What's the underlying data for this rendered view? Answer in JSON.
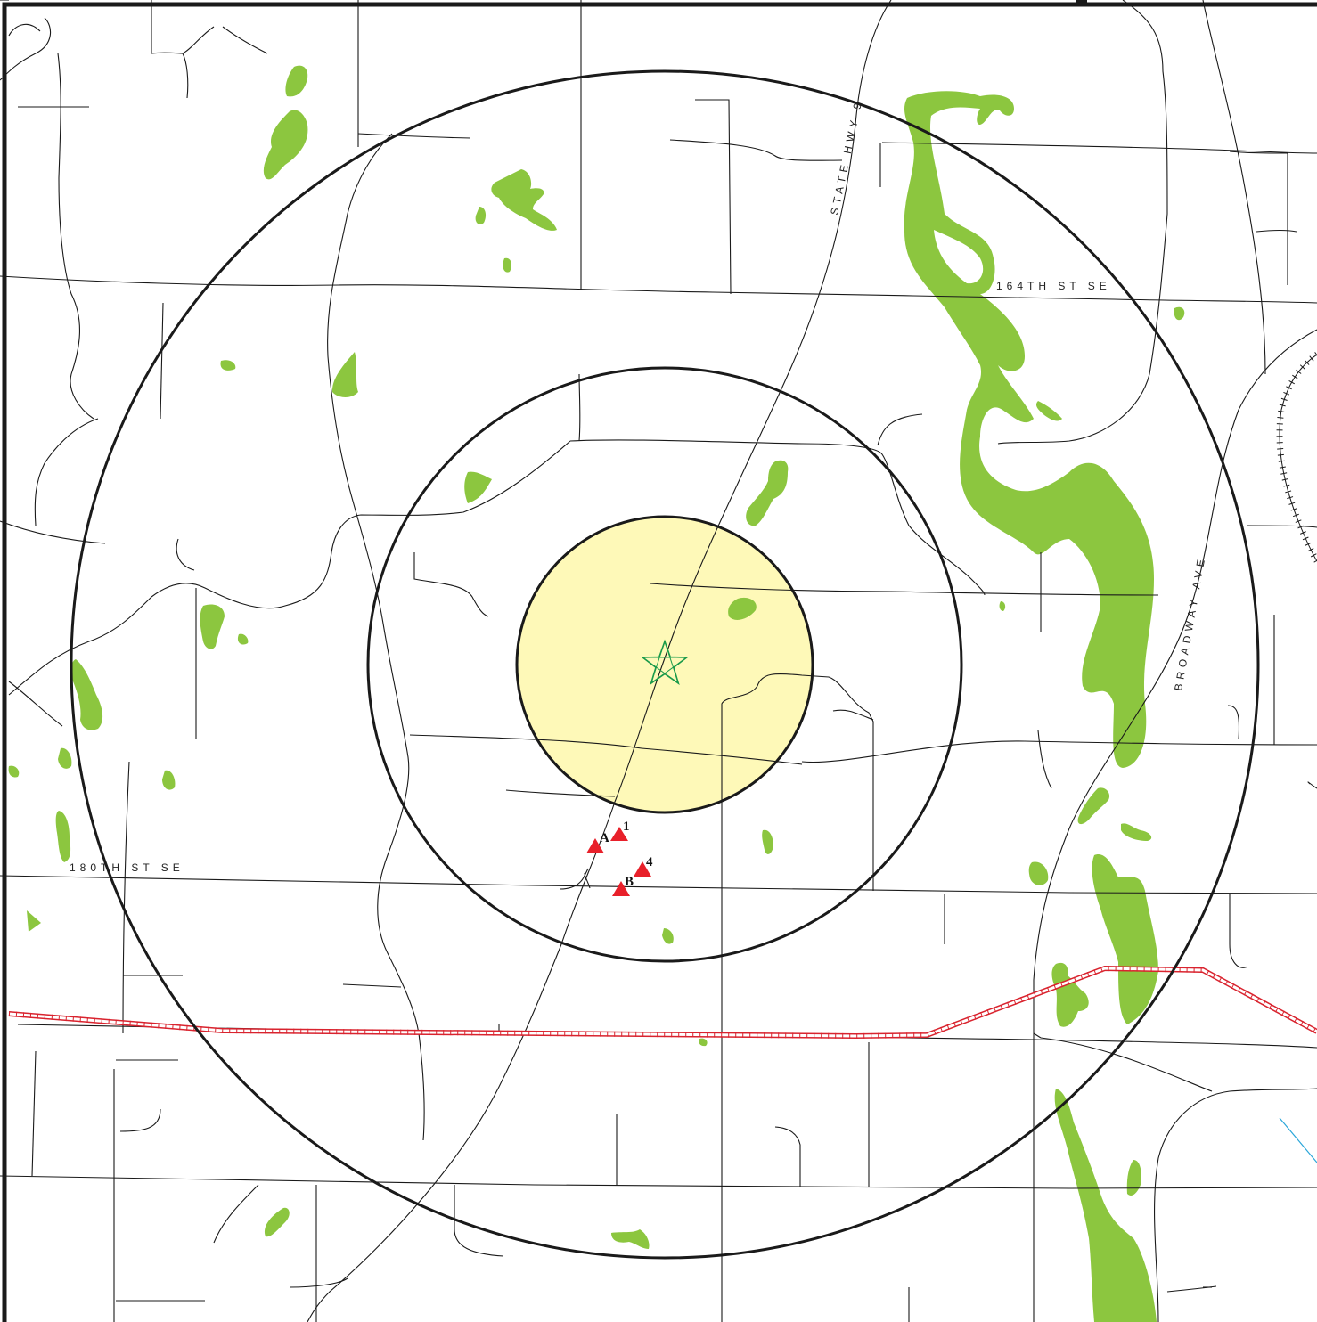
{
  "streets": {
    "hwy9": "STATE HWY 9",
    "st164": "164TH ST SE",
    "broadway": "BROADWAY AVE",
    "st180": "180TH ST SE"
  },
  "sites": [
    {
      "label": "1"
    },
    {
      "label": "A"
    },
    {
      "label": "4"
    },
    {
      "label": "B"
    }
  ],
  "colors": {
    "wetland": "#8cc63f",
    "inner_zone_fill": "#fef9b8",
    "site_marker": "#e8202a",
    "pipeline": "#d9232e",
    "center_star": "#1a9a4a",
    "stream": "#2aa6d9"
  },
  "icons": {
    "center": "star-icon",
    "site": "triangle-marker-icon"
  }
}
